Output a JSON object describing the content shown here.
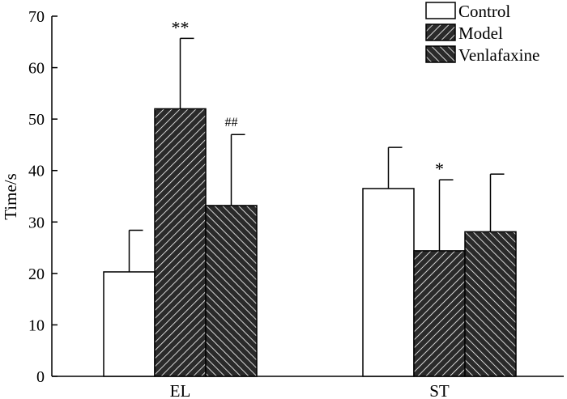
{
  "chart_data": {
    "type": "bar",
    "title": "",
    "xlabel": "",
    "ylabel": "Time/s",
    "ylim": [
      0,
      70
    ],
    "yticks": [
      0,
      10,
      20,
      30,
      40,
      50,
      60,
      70
    ],
    "categories": [
      "EL",
      "ST"
    ],
    "series": [
      {
        "name": "Control",
        "pattern": "none",
        "values": [
          20.3,
          36.5
        ],
        "errors": [
          8.1,
          8.0
        ]
      },
      {
        "name": "Model",
        "pattern": "hatch-right",
        "values": [
          52.0,
          24.4
        ],
        "errors": [
          13.7,
          13.8
        ]
      },
      {
        "name": "Venlafaxine",
        "pattern": "hatch-left",
        "values": [
          33.2,
          28.1
        ],
        "errors": [
          13.8,
          11.2
        ]
      }
    ],
    "annotations": [
      {
        "text": "**",
        "series": 1,
        "category": 0
      },
      {
        "text": "##",
        "series": 2,
        "category": 0
      },
      {
        "text": "*",
        "series": 1,
        "category": 1
      }
    ],
    "legend_position": "top-right",
    "grid": false
  },
  "colors": {
    "ink": "#000000",
    "fill": "#ffffff",
    "hatch_bg": "#2a2a2a",
    "hatch_line": "#ffffff"
  }
}
